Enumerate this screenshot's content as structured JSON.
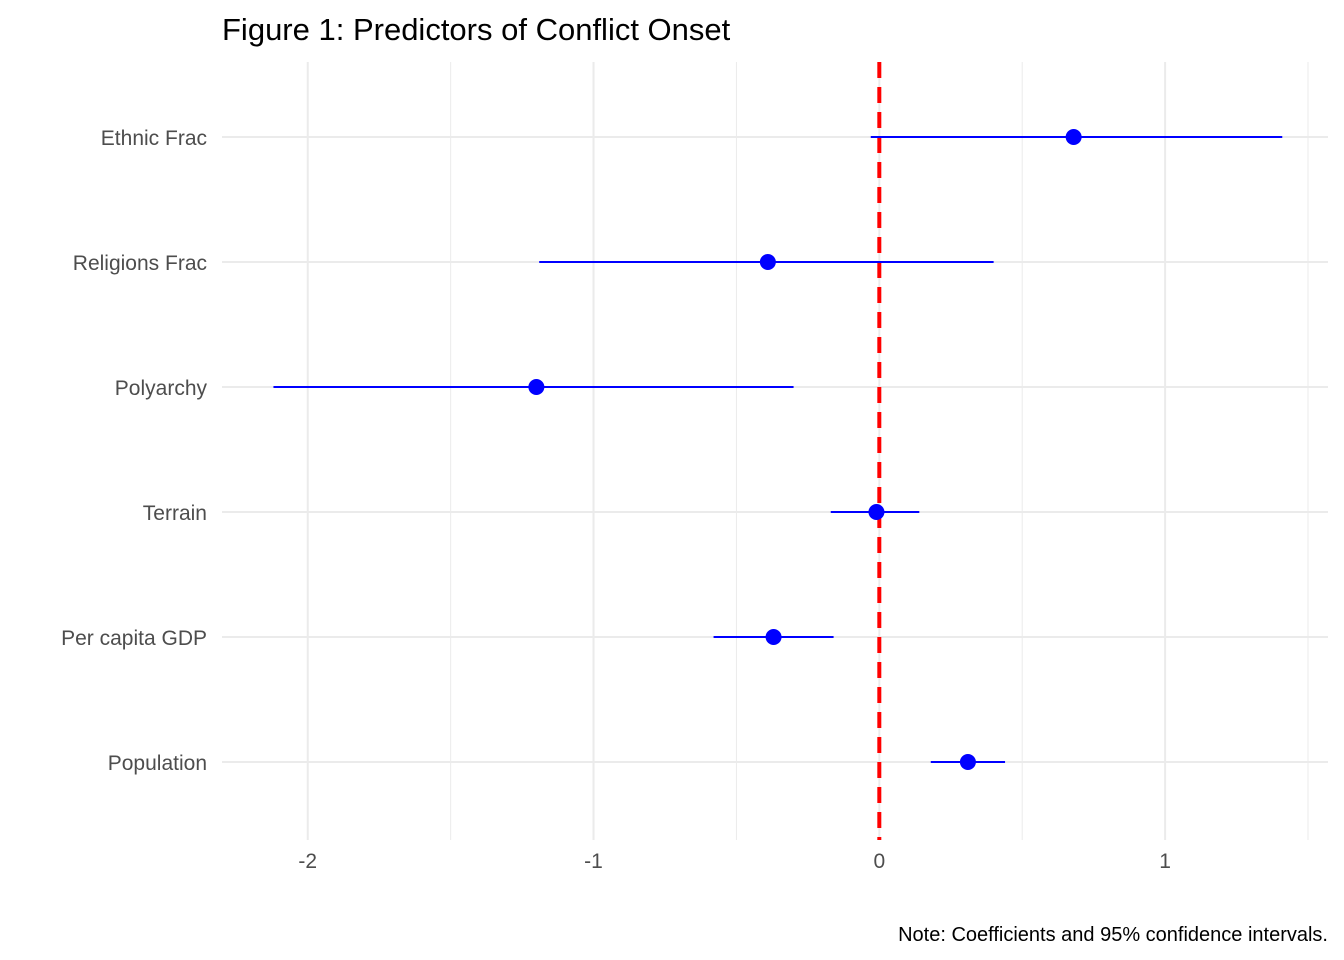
{
  "chart_data": {
    "type": "scatter",
    "subtype": "coefficient-plot",
    "title": "Figure 1: Predictors of Conflict Onset",
    "caption": "Note: Coefficients and 95% confidence intervals.",
    "xlabel": "",
    "ylabel": "",
    "xlim": [
      -2.3,
      1.57
    ],
    "x_ticks": [
      -2,
      -1,
      0,
      1
    ],
    "x_tick_labels": [
      "-2",
      "-1",
      "0",
      "1"
    ],
    "x_minor_ticks": [
      -1.5,
      -0.5,
      0.5,
      1.5
    ],
    "grid": true,
    "reference_line": {
      "x": 0,
      "style": "dashed",
      "color": "#ff0000"
    },
    "point_color": "#0000ff",
    "interval_color": "#0000ff",
    "categories": [
      "Ethnic Frac",
      "Religions Frac",
      "Polyarchy",
      "Terrain",
      "Per capita GDP",
      "Population"
    ],
    "estimates": [
      0.68,
      -0.39,
      -1.2,
      -0.01,
      -0.37,
      0.31
    ],
    "ci_lower": [
      -0.03,
      -1.19,
      -2.12,
      -0.17,
      -0.58,
      0.18
    ],
    "ci_upper": [
      1.41,
      0.4,
      -0.3,
      0.14,
      -0.16,
      0.44
    ]
  }
}
